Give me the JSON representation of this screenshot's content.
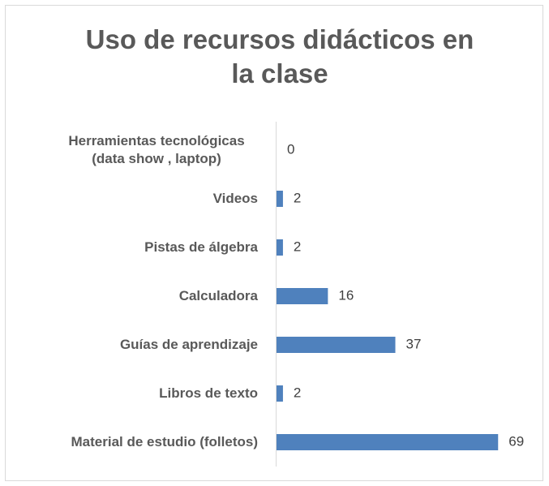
{
  "chart_data": {
    "type": "bar",
    "orientation": "horizontal",
    "title": "Uso de recursos didácticos en la clase",
    "categories": [
      "Herramientas tecnológicas (data show , laptop)",
      "Videos",
      "Pistas de álgebra",
      "Calculadora",
      "Guías de aprendizaje",
      "Libros de texto",
      "Material de estudio (folletos)"
    ],
    "values": [
      0,
      2,
      2,
      16,
      37,
      2,
      69
    ],
    "color": "#4f81bd"
  }
}
